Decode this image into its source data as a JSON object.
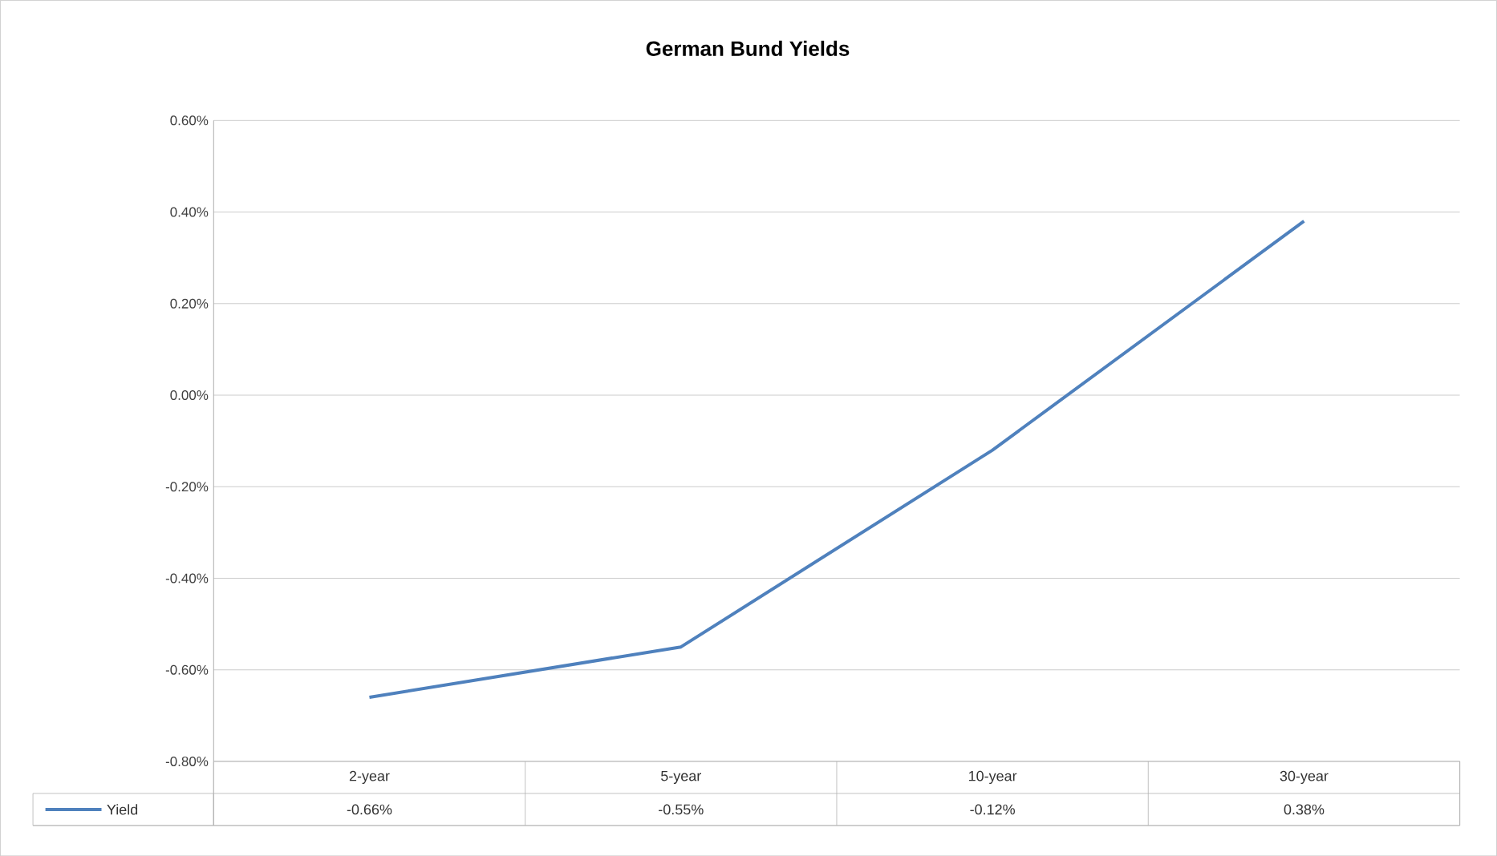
{
  "chart_data": {
    "type": "line",
    "title": "German Bund Yields",
    "categories": [
      "2-year",
      "5-year",
      "10-year",
      "30-year"
    ],
    "series": [
      {
        "name": "Yield",
        "color": "#4f81bd",
        "values": [
          -0.66,
          -0.55,
          -0.12,
          0.38
        ],
        "value_labels": [
          "-0.66%",
          "-0.55%",
          "-0.12%",
          "0.38%"
        ]
      }
    ],
    "ylim": [
      -0.8,
      0.6
    ],
    "yticks": [
      {
        "value": -0.8,
        "label": "-0.80%"
      },
      {
        "value": -0.6,
        "label": "-0.60%"
      },
      {
        "value": -0.4,
        "label": "-0.40%"
      },
      {
        "value": -0.2,
        "label": "-0.20%"
      },
      {
        "value": 0,
        "label": "0.00%"
      },
      {
        "value": 0.2,
        "label": "0.20%"
      },
      {
        "value": 0.4,
        "label": "0.40%"
      },
      {
        "value": 0.6,
        "label": "0.60%"
      }
    ],
    "grid": "y",
    "legend": "bottom",
    "marker": "none",
    "line_style": "solid"
  }
}
